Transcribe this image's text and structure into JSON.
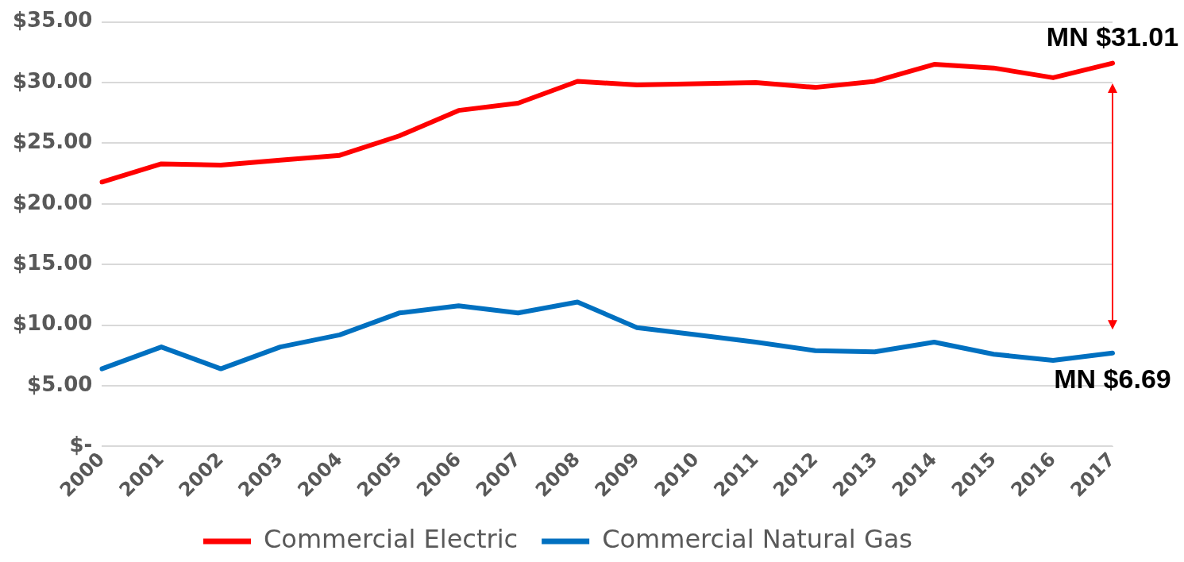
{
  "chart_data": {
    "type": "line",
    "categories": [
      "2000",
      "2001",
      "2002",
      "2003",
      "2004",
      "2005",
      "2006",
      "2007",
      "2008",
      "2009",
      "2010",
      "2011",
      "2012",
      "2013",
      "2014",
      "2015",
      "2016",
      "2017"
    ],
    "series": [
      {
        "name": "Commercial Electric",
        "color": "#ff0000",
        "values": [
          21.8,
          23.3,
          23.2,
          23.6,
          24.0,
          25.6,
          27.7,
          28.3,
          30.1,
          29.8,
          29.9,
          30.0,
          29.6,
          30.1,
          31.5,
          31.2,
          30.4,
          31.6
        ]
      },
      {
        "name": "Commercial Natural Gas",
        "color": "#0070c0",
        "values": [
          6.4,
          8.2,
          6.4,
          8.2,
          9.2,
          11.0,
          11.6,
          11.0,
          11.9,
          9.8,
          9.2,
          8.6,
          7.9,
          7.8,
          8.6,
          7.6,
          7.1,
          7.7
        ]
      }
    ],
    "ylim": [
      0,
      35
    ],
    "yticks": [
      {
        "value": 0,
        "label": "$-"
      },
      {
        "value": 5,
        "label": "$5.00"
      },
      {
        "value": 10,
        "label": "$10.00"
      },
      {
        "value": 15,
        "label": "$15.00"
      },
      {
        "value": 20,
        "label": "$20.00"
      },
      {
        "value": 25,
        "label": "$25.00"
      },
      {
        "value": 30,
        "label": "$30.00"
      },
      {
        "value": 35,
        "label": "$35.00"
      }
    ],
    "grid": "y",
    "legend": "bottom",
    "marker": "none",
    "line_style": "solid",
    "annotations": [
      "MN $31.01",
      "MN $6.69"
    ]
  }
}
